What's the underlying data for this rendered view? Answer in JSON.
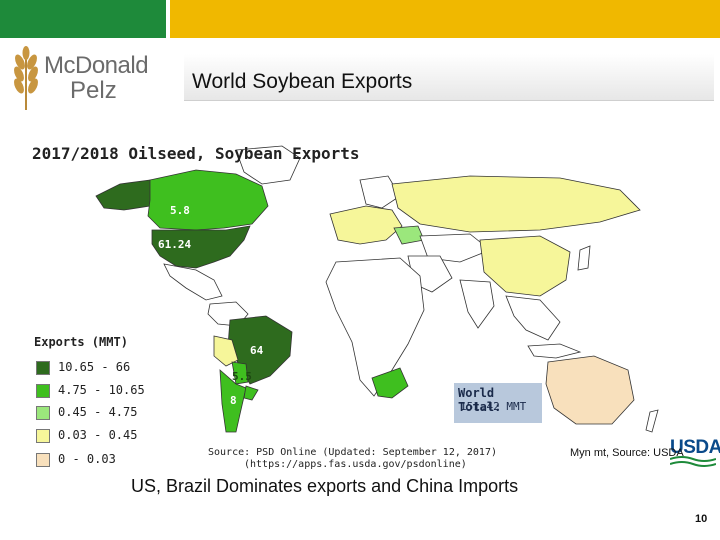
{
  "brand": {
    "name_line1": "McDonald",
    "name_line2": "Pelz"
  },
  "slide": {
    "title": "World Soybean Exports",
    "note": "Myn mt, Source: USDA",
    "caption": "US, Brazil Dominates exports and China Imports",
    "page_number": "10",
    "usda_logo_text": "USDA"
  },
  "map": {
    "title": "2017/2018 Oilseed, Soybean Exports",
    "legend_title": "Exports (MMT)",
    "legend": [
      {
        "label": "10.65 - 66",
        "color": "#2e6b1e"
      },
      {
        "label": "4.75 - 10.65",
        "color": "#3fbf1f"
      },
      {
        "label": "0.45 - 4.75",
        "color": "#9be77c"
      },
      {
        "label": "0.03 - 0.45",
        "color": "#f6f69a"
      },
      {
        "label": "0 - 0.03",
        "color": "#f8e0bc"
      }
    ],
    "total_label": "World Total:",
    "total_value": "151.42 MMT",
    "source_line1": "Source: PSD Online (Updated: September 12, 2017)",
    "source_line2": "(https://apps.fas.usda.gov/psdonline)",
    "region_labels": [
      {
        "name": "canada",
        "text": "5.8"
      },
      {
        "name": "united-states",
        "text": "61.24"
      },
      {
        "name": "brazil",
        "text": "64"
      },
      {
        "name": "paraguay",
        "text": "5.5"
      },
      {
        "name": "argentina",
        "text": "8"
      }
    ]
  },
  "colors": {
    "top_green": "#1e8a3a",
    "top_yellow": "#f0b800",
    "usda_blue": "#0a4a8a"
  }
}
